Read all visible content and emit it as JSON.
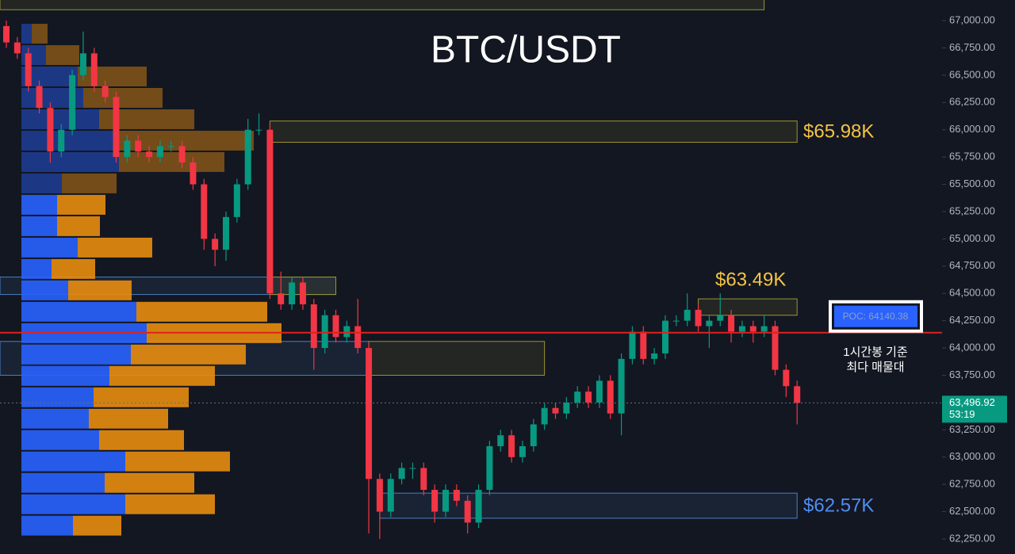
{
  "chart_data": {
    "type": "candlestick",
    "title": "BTC/USDT",
    "colors": {
      "up": "#089981",
      "down": "#f23645",
      "buy": "#2962ff",
      "sell": "#e88d0f",
      "zone_yellow": "#9a9430",
      "zone_blue": "#4a7fc0",
      "poc": "#e0201b"
    },
    "ylim": [
      62112,
      67189
    ],
    "yticks": [
      {
        "value": 67000,
        "label": "67,000.00"
      },
      {
        "value": 66750,
        "label": "66,750.00"
      },
      {
        "value": 66500,
        "label": "66,500.00"
      },
      {
        "value": 66250,
        "label": "66,250.00"
      },
      {
        "value": 66000,
        "label": "66,000.00"
      },
      {
        "value": 65750,
        "label": "65,750.00"
      },
      {
        "value": 65500,
        "label": "65,500.00"
      },
      {
        "value": 65250,
        "label": "65,250.00"
      },
      {
        "value": 65000,
        "label": "65,000.00"
      },
      {
        "value": 64750,
        "label": "64,750.00"
      },
      {
        "value": 64500,
        "label": "64,500.00"
      },
      {
        "value": 64250,
        "label": "64,250.00"
      },
      {
        "value": 64000,
        "label": "64,000.00"
      },
      {
        "value": 63750,
        "label": "63,750.00"
      },
      {
        "value": 63500,
        "label": "63,500.00"
      },
      {
        "value": 63250,
        "label": "63,250.00"
      },
      {
        "value": 63000,
        "label": "63,000.00"
      },
      {
        "value": 62750,
        "label": "62,750.00"
      },
      {
        "value": 62500,
        "label": "62,500.00"
      },
      {
        "value": 62250,
        "label": "62,250.00"
      }
    ],
    "open": [
      66950,
      66800,
      66700,
      66400,
      66200,
      65800,
      66000,
      66500,
      66700,
      66400,
      66300,
      65750,
      65900,
      65800,
      65750,
      65850,
      65850,
      65700,
      65500,
      65000,
      64900,
      65200,
      65500,
      66000,
      66000,
      64500,
      64400,
      64600,
      64400,
      64000,
      64300,
      64100,
      64200,
      64000,
      62800,
      62500,
      62800,
      62900,
      62900,
      62700,
      62500,
      62700,
      62600,
      62400,
      62700,
      63100,
      63200,
      63000,
      63100,
      63300,
      63450,
      63400,
      63500,
      63600,
      63500,
      63700,
      63400,
      63900,
      64150,
      63900,
      63950,
      64250,
      64250,
      64350,
      64200,
      64250,
      64300,
      64150,
      64200,
      64150,
      64200,
      63800,
      63650
    ],
    "high": [
      67000,
      66850,
      66750,
      66450,
      66250,
      66050,
      66550,
      66900,
      66750,
      66450,
      66350,
      65950,
      65950,
      65850,
      65900,
      65900,
      65900,
      65750,
      65550,
      65050,
      65250,
      65550,
      66100,
      66150,
      66050,
      64700,
      64650,
      64650,
      64450,
      64350,
      64350,
      64250,
      64450,
      64050,
      62850,
      62850,
      62950,
      62950,
      62950,
      62750,
      62750,
      62750,
      62650,
      62750,
      63150,
      63250,
      63250,
      63150,
      63350,
      63500,
      63500,
      63550,
      63650,
      63650,
      63750,
      63750,
      63950,
      64200,
      64200,
      64000,
      64300,
      64300,
      64500,
      64400,
      64300,
      64500,
      64350,
      64250,
      64250,
      64300,
      64250,
      63850,
      63700
    ],
    "low": [
      66750,
      66650,
      66350,
      66150,
      65700,
      65750,
      65950,
      66450,
      66350,
      66250,
      65700,
      65700,
      65750,
      65700,
      65700,
      65800,
      65650,
      65450,
      64900,
      64750,
      64800,
      65150,
      65450,
      65950,
      64450,
      64350,
      64350,
      64350,
      63800,
      63950,
      64050,
      64050,
      63950,
      62300,
      62250,
      62450,
      62750,
      62800,
      62650,
      62400,
      62450,
      62550,
      62300,
      62350,
      62650,
      63050,
      62950,
      62950,
      63050,
      63250,
      63350,
      63350,
      63450,
      63450,
      63450,
      63350,
      63200,
      63850,
      63850,
      63850,
      63900,
      64200,
      64200,
      64150,
      64000,
      64200,
      64050,
      64100,
      64050,
      64100,
      63750,
      63550,
      63300
    ],
    "close": [
      66800,
      66700,
      66400,
      66200,
      65800,
      66000,
      66500,
      66700,
      66400,
      66300,
      65750,
      65900,
      65800,
      65750,
      65850,
      65850,
      65700,
      65500,
      65000,
      64900,
      65200,
      65500,
      66000,
      66000,
      64500,
      64400,
      64600,
      64400,
      64000,
      64300,
      64100,
      64200,
      64000,
      62800,
      62500,
      62800,
      62900,
      62900,
      62700,
      62500,
      62700,
      62600,
      62400,
      62700,
      63100,
      63200,
      63000,
      63100,
      63300,
      63450,
      63400,
      63500,
      63600,
      63500,
      63700,
      63400,
      63900,
      64150,
      63900,
      63950,
      64250,
      64250,
      64350,
      64200,
      64250,
      64300,
      64150,
      64200,
      64150,
      64200,
      63800,
      63650,
      63496.92
    ],
    "volume_profile": {
      "levels": [
        66880,
        66684,
        66488,
        66292,
        66096,
        65900,
        65704,
        65508,
        65312,
        65116,
        64920,
        64724,
        64528,
        64332,
        64136,
        63940,
        63744,
        63548,
        63352,
        63156,
        62960,
        62764,
        62568,
        62372
      ],
      "buy": [
        13,
        31,
        71,
        78,
        98,
        123,
        123,
        51,
        45,
        45,
        71,
        38,
        59,
        145,
        158,
        138,
        111,
        91,
        85,
        98,
        131,
        105,
        131,
        65
      ],
      "sell": [
        20,
        42,
        87,
        100,
        120,
        170,
        133,
        69,
        61,
        54,
        94,
        55,
        80,
        165,
        170,
        145,
        133,
        120,
        100,
        107,
        132,
        113,
        113,
        61
      ]
    },
    "zones": [
      {
        "low": 67100,
        "high": 67250,
        "start": 0,
        "end": 69,
        "color": "yellow"
      },
      {
        "low": 65885,
        "high": 66080,
        "start": 24,
        "end": 72,
        "color": "yellow"
      },
      {
        "low": 64490,
        "high": 64650,
        "start": 0,
        "end": 30,
        "color": "blue"
      },
      {
        "low": 64490,
        "high": 64650,
        "start": 24,
        "end": 30,
        "color": "yellow"
      },
      {
        "low": 64300,
        "high": 64450,
        "start": 63,
        "end": 72,
        "color": "yellow"
      },
      {
        "low": 63750,
        "high": 64060,
        "start": 0,
        "end": 33,
        "color": "blue"
      },
      {
        "low": 63750,
        "high": 64060,
        "start": 33,
        "end": 49,
        "color": "yellow"
      },
      {
        "low": 62440,
        "high": 62670,
        "start": 34,
        "end": 72,
        "color": "blue"
      }
    ],
    "poc": {
      "value": 64140.38,
      "label": "POC: 64140.38"
    },
    "last_price": {
      "value": 63496.92,
      "label": "63,496.92",
      "countdown": "53:19"
    },
    "annotations": [
      {
        "text": "$65.98K",
        "color": "#f5c344"
      },
      {
        "text": "$63.49K",
        "color": "#f5c344"
      },
      {
        "text": "$62.57K",
        "color": "#4d8ef5"
      }
    ],
    "note": [
      "1시간봉 기준",
      "최다 매물대"
    ]
  }
}
